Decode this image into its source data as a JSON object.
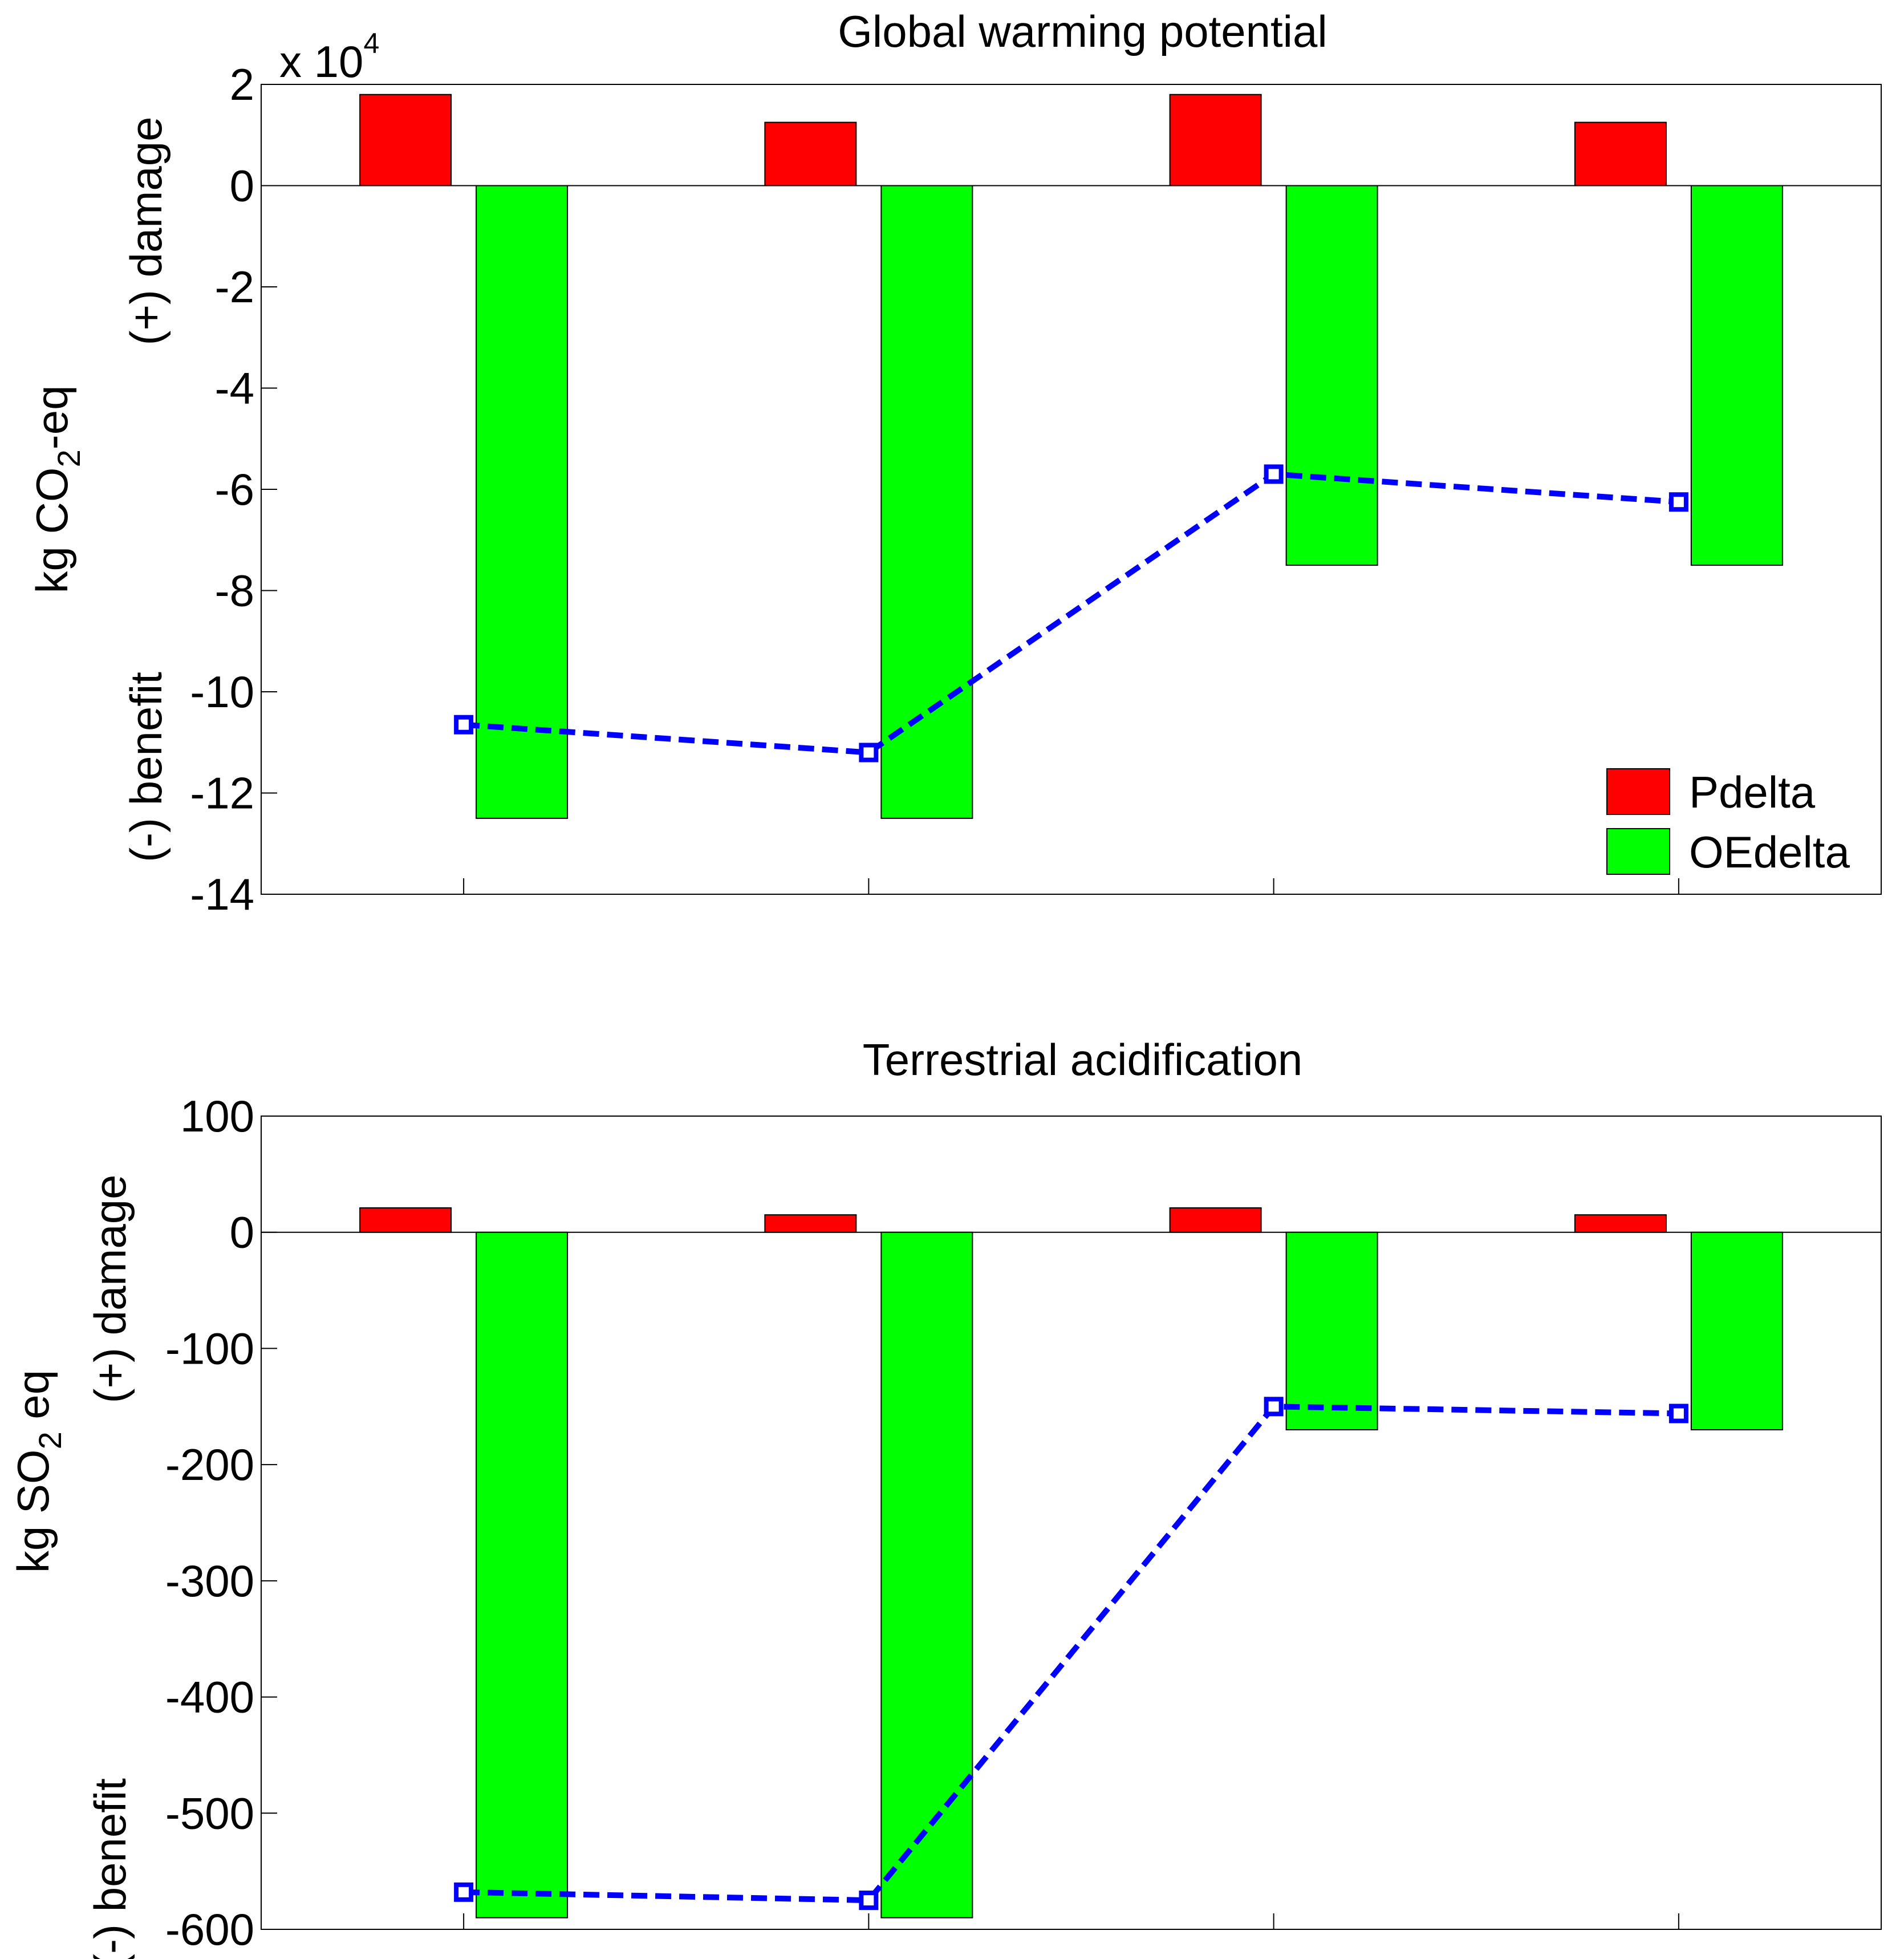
{
  "chart_data": [
    {
      "type": "bar",
      "title": "Global warming potential",
      "categories": [
        "",
        "",
        "",
        ""
      ],
      "ylim": [
        -14,
        2
      ],
      "yticks": [
        "2",
        "0",
        "-2",
        "-4",
        "-6",
        "-8",
        "-10",
        "-12",
        "-14"
      ],
      "ytick_values": [
        2,
        0,
        -2,
        -4,
        -6,
        -8,
        -10,
        -12,
        -14
      ],
      "exponent_prefix": "x 10",
      "exponent_power": "4",
      "ylabel_main_pre": "kg CO",
      "ylabel_main_sub": "2",
      "ylabel_main_post": "-eq",
      "ylabel_damage": "(+) damage",
      "ylabel_benefit": "(-) benefit",
      "grid": false,
      "legend_position": "bottom-right",
      "series": [
        {
          "name": "Pdelta",
          "type": "bar",
          "color": "#ff0000",
          "values": [
            1.8,
            1.25,
            1.8,
            1.25
          ]
        },
        {
          "name": "OEdelta",
          "type": "bar",
          "color": "#00ff00",
          "values": [
            -12.5,
            -12.5,
            -7.5,
            -7.5
          ]
        },
        {
          "type": "line",
          "style": "dashed",
          "marker": "square",
          "color": "#0000ff",
          "values": [
            -10.65,
            -11.2,
            -5.7,
            -6.25
          ]
        }
      ]
    },
    {
      "type": "bar",
      "title": "Terrestrial acidification",
      "categories": [
        "",
        "",
        "",
        ""
      ],
      "ylim": [
        -600,
        100
      ],
      "yticks": [
        "100",
        "0",
        "-100",
        "-200",
        "-300",
        "-400",
        "-500",
        "-600"
      ],
      "ytick_values": [
        100,
        0,
        -100,
        -200,
        -300,
        -400,
        -500,
        -600
      ],
      "ylabel_main_pre": "kg SO",
      "ylabel_main_sub": "2",
      "ylabel_main_post": " eq",
      "ylabel_damage": "(+) damage",
      "ylabel_benefit": "(-) benefit",
      "grid": false,
      "series": [
        {
          "name": "Pdelta",
          "type": "bar",
          "color": "#ff0000",
          "values": [
            21,
            15,
            21,
            15
          ]
        },
        {
          "name": "OEdelta",
          "type": "bar",
          "color": "#00ff00",
          "values": [
            -590,
            -590,
            -170,
            -170
          ]
        },
        {
          "type": "line",
          "style": "dashed",
          "marker": "square",
          "color": "#0000ff",
          "values": [
            -568,
            -575,
            -150,
            -156
          ]
        }
      ]
    }
  ]
}
